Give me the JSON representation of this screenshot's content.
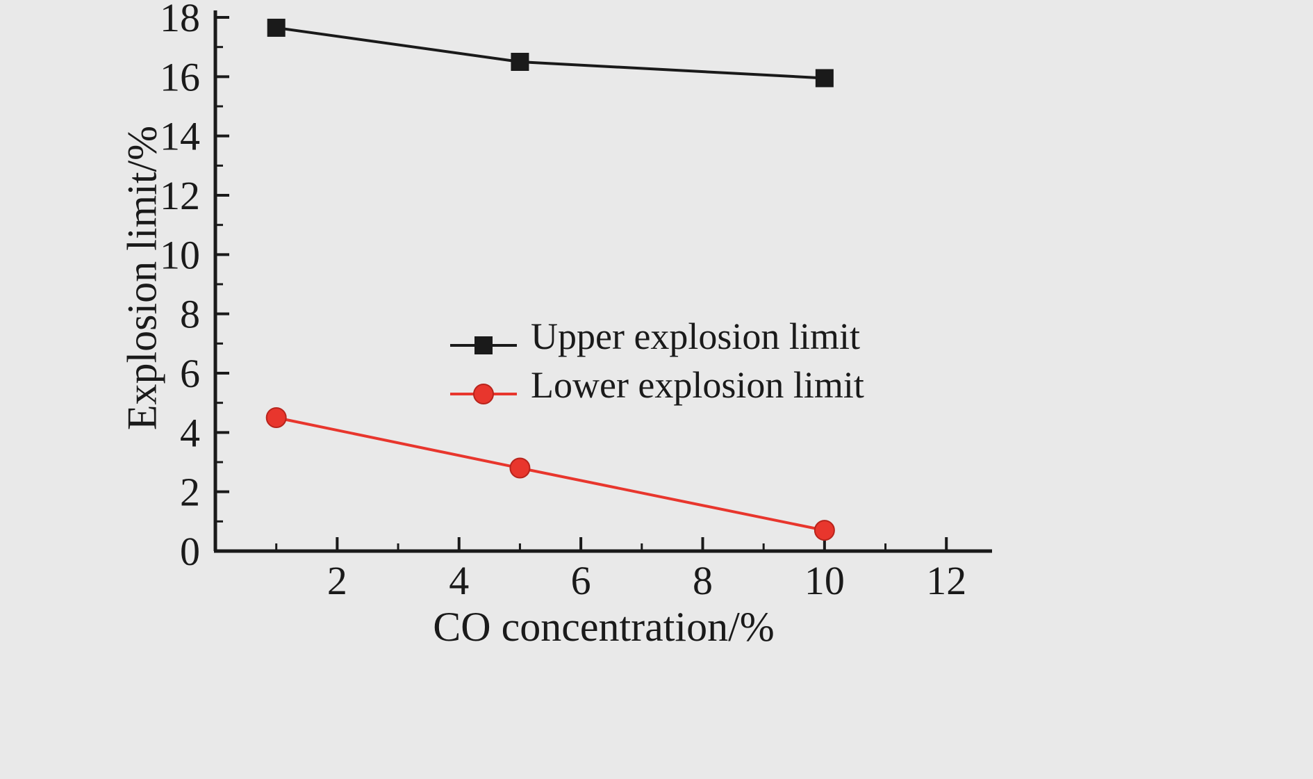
{
  "chart_data": {
    "type": "line",
    "title": "",
    "xlabel": "CO concentration/%",
    "ylabel": "Explosion limit/%",
    "xlim": [
      0,
      12.75
    ],
    "ylim": [
      0,
      18
    ],
    "x_major_ticks": [
      2,
      4,
      6,
      8,
      10,
      12
    ],
    "x_minor_ticks": [
      1,
      3,
      5,
      7,
      9,
      11
    ],
    "y_major_ticks": [
      0,
      2,
      4,
      6,
      8,
      10,
      12,
      14,
      16,
      18
    ],
    "y_minor_ticks": [
      1,
      3,
      5,
      7,
      9,
      11,
      13,
      15,
      17
    ],
    "grid": false,
    "legend_position": "center",
    "series": [
      {
        "name": "Upper explosion limit",
        "marker": "square",
        "color": "#1a1a1a",
        "x": [
          1,
          5,
          10
        ],
        "y": [
          17.65,
          16.5,
          15.95
        ]
      },
      {
        "name": "Lower explosion limit",
        "marker": "circle",
        "color": "#e8362d",
        "x": [
          1,
          5,
          10
        ],
        "y": [
          4.5,
          2.8,
          0.7
        ]
      }
    ]
  },
  "colors": {
    "background": "#e9e9e9",
    "axis": "#1a1a1a",
    "text": "#1a1a1a"
  }
}
